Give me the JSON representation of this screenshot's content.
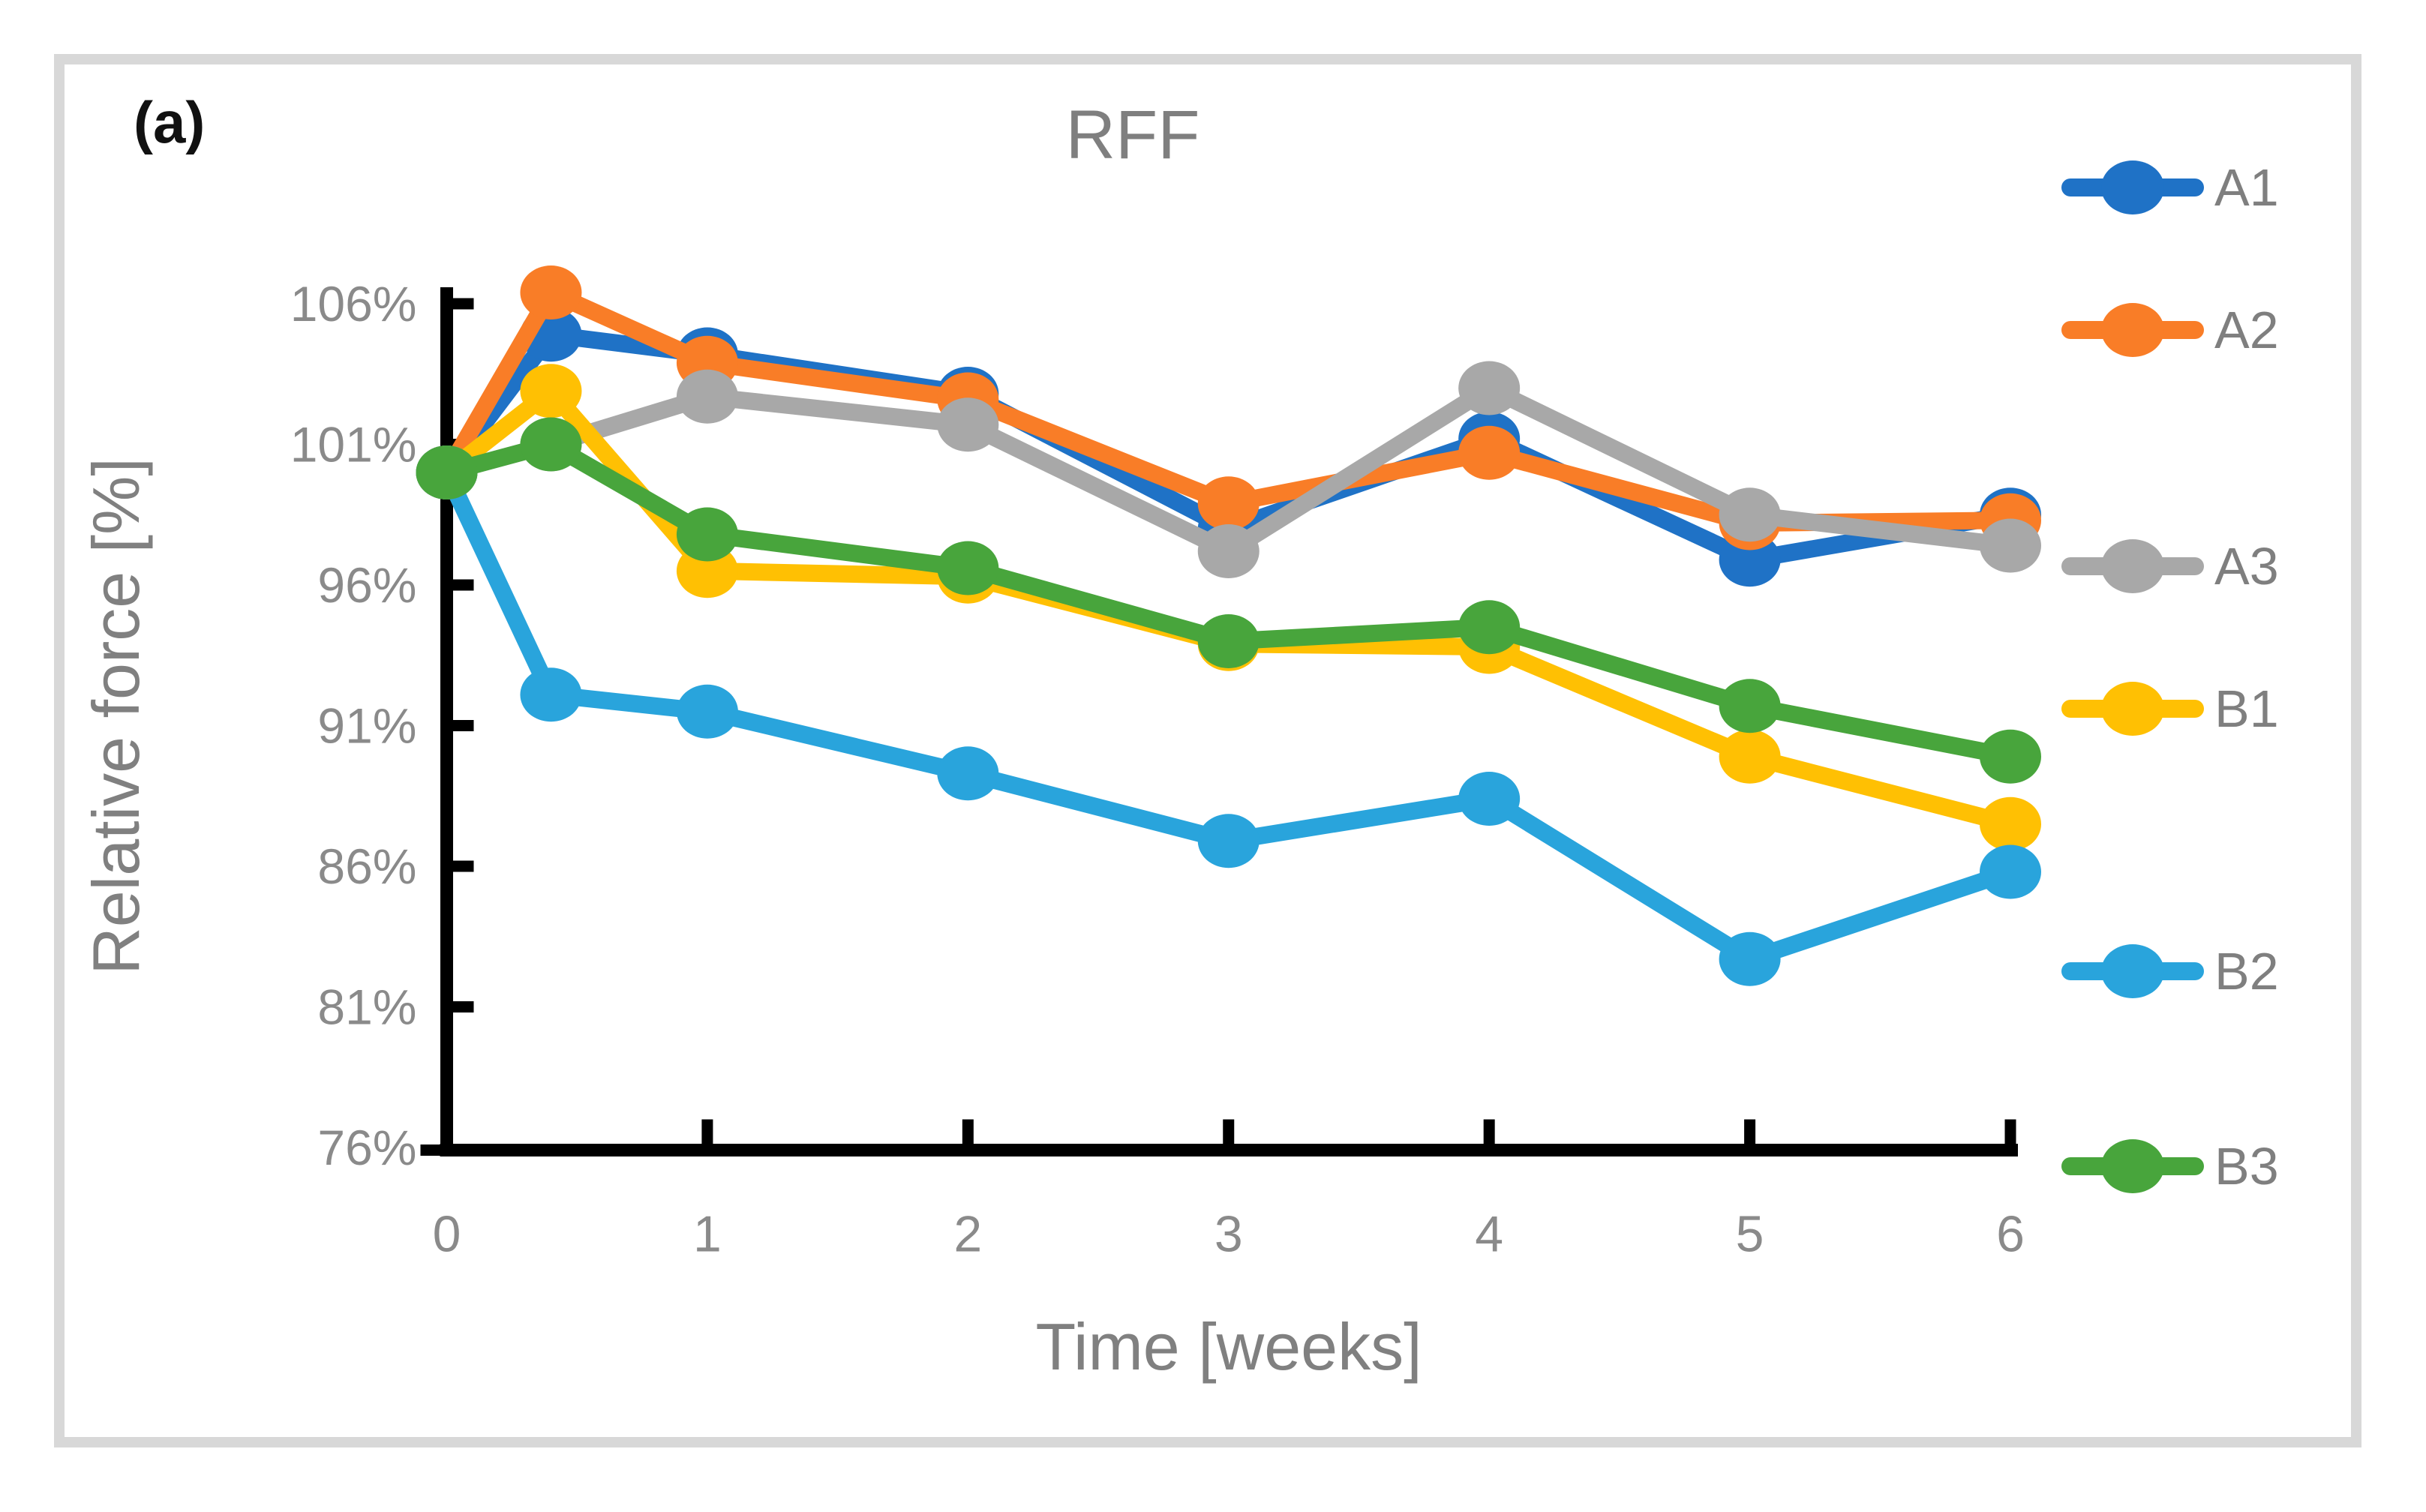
{
  "panel_label": "(a)",
  "chart_data": {
    "type": "line",
    "title": "RFF",
    "xlabel": "Time [weeks]",
    "ylabel": "Relative force [%]",
    "x": [
      0,
      0.4,
      1,
      2,
      3,
      4,
      5,
      6
    ],
    "x_tick_values": [
      0,
      1,
      2,
      3,
      4,
      5,
      6
    ],
    "x_tick_labels": [
      "0",
      "1",
      "2",
      "3",
      "4",
      "5",
      "6"
    ],
    "y_tick_values": [
      76,
      81,
      86,
      91,
      96,
      101,
      106
    ],
    "y_tick_labels": [
      "76%",
      "81%",
      "86%",
      "91%",
      "96%",
      "101%",
      "106%"
    ],
    "xlim": [
      0,
      6
    ],
    "ylim": [
      76,
      107
    ],
    "grid": false,
    "legend_position": "right",
    "series": [
      {
        "name": "A1",
        "color": "#1F72C6",
        "values": [
          100,
          104.9,
          104.2,
          102.8,
          98.0,
          101.2,
          96.9,
          98.5
        ]
      },
      {
        "name": "A2",
        "color": "#F97D27",
        "values": [
          100,
          106.4,
          103.9,
          102.6,
          98.9,
          100.7,
          98.2,
          98.3
        ]
      },
      {
        "name": "A3",
        "color": "#A8A8A8",
        "values": [
          100,
          101.0,
          102.7,
          101.7,
          97.2,
          103.0,
          98.5,
          97.4
        ]
      },
      {
        "name": "B1",
        "color": "#FFC003",
        "values": [
          100,
          102.9,
          96.5,
          96.3,
          93.9,
          93.8,
          89.9,
          87.5
        ]
      },
      {
        "name": "B2",
        "color": "#29A4DC",
        "values": [
          100,
          92.1,
          91.5,
          89.3,
          86.9,
          88.4,
          82.7,
          85.8
        ]
      },
      {
        "name": "B3",
        "color": "#48A53C",
        "values": [
          100,
          101.0,
          97.8,
          96.6,
          94.0,
          94.5,
          91.7,
          89.9
        ]
      }
    ],
    "axis_color": "#000000",
    "tick_label_color": "#8a8a8a"
  }
}
